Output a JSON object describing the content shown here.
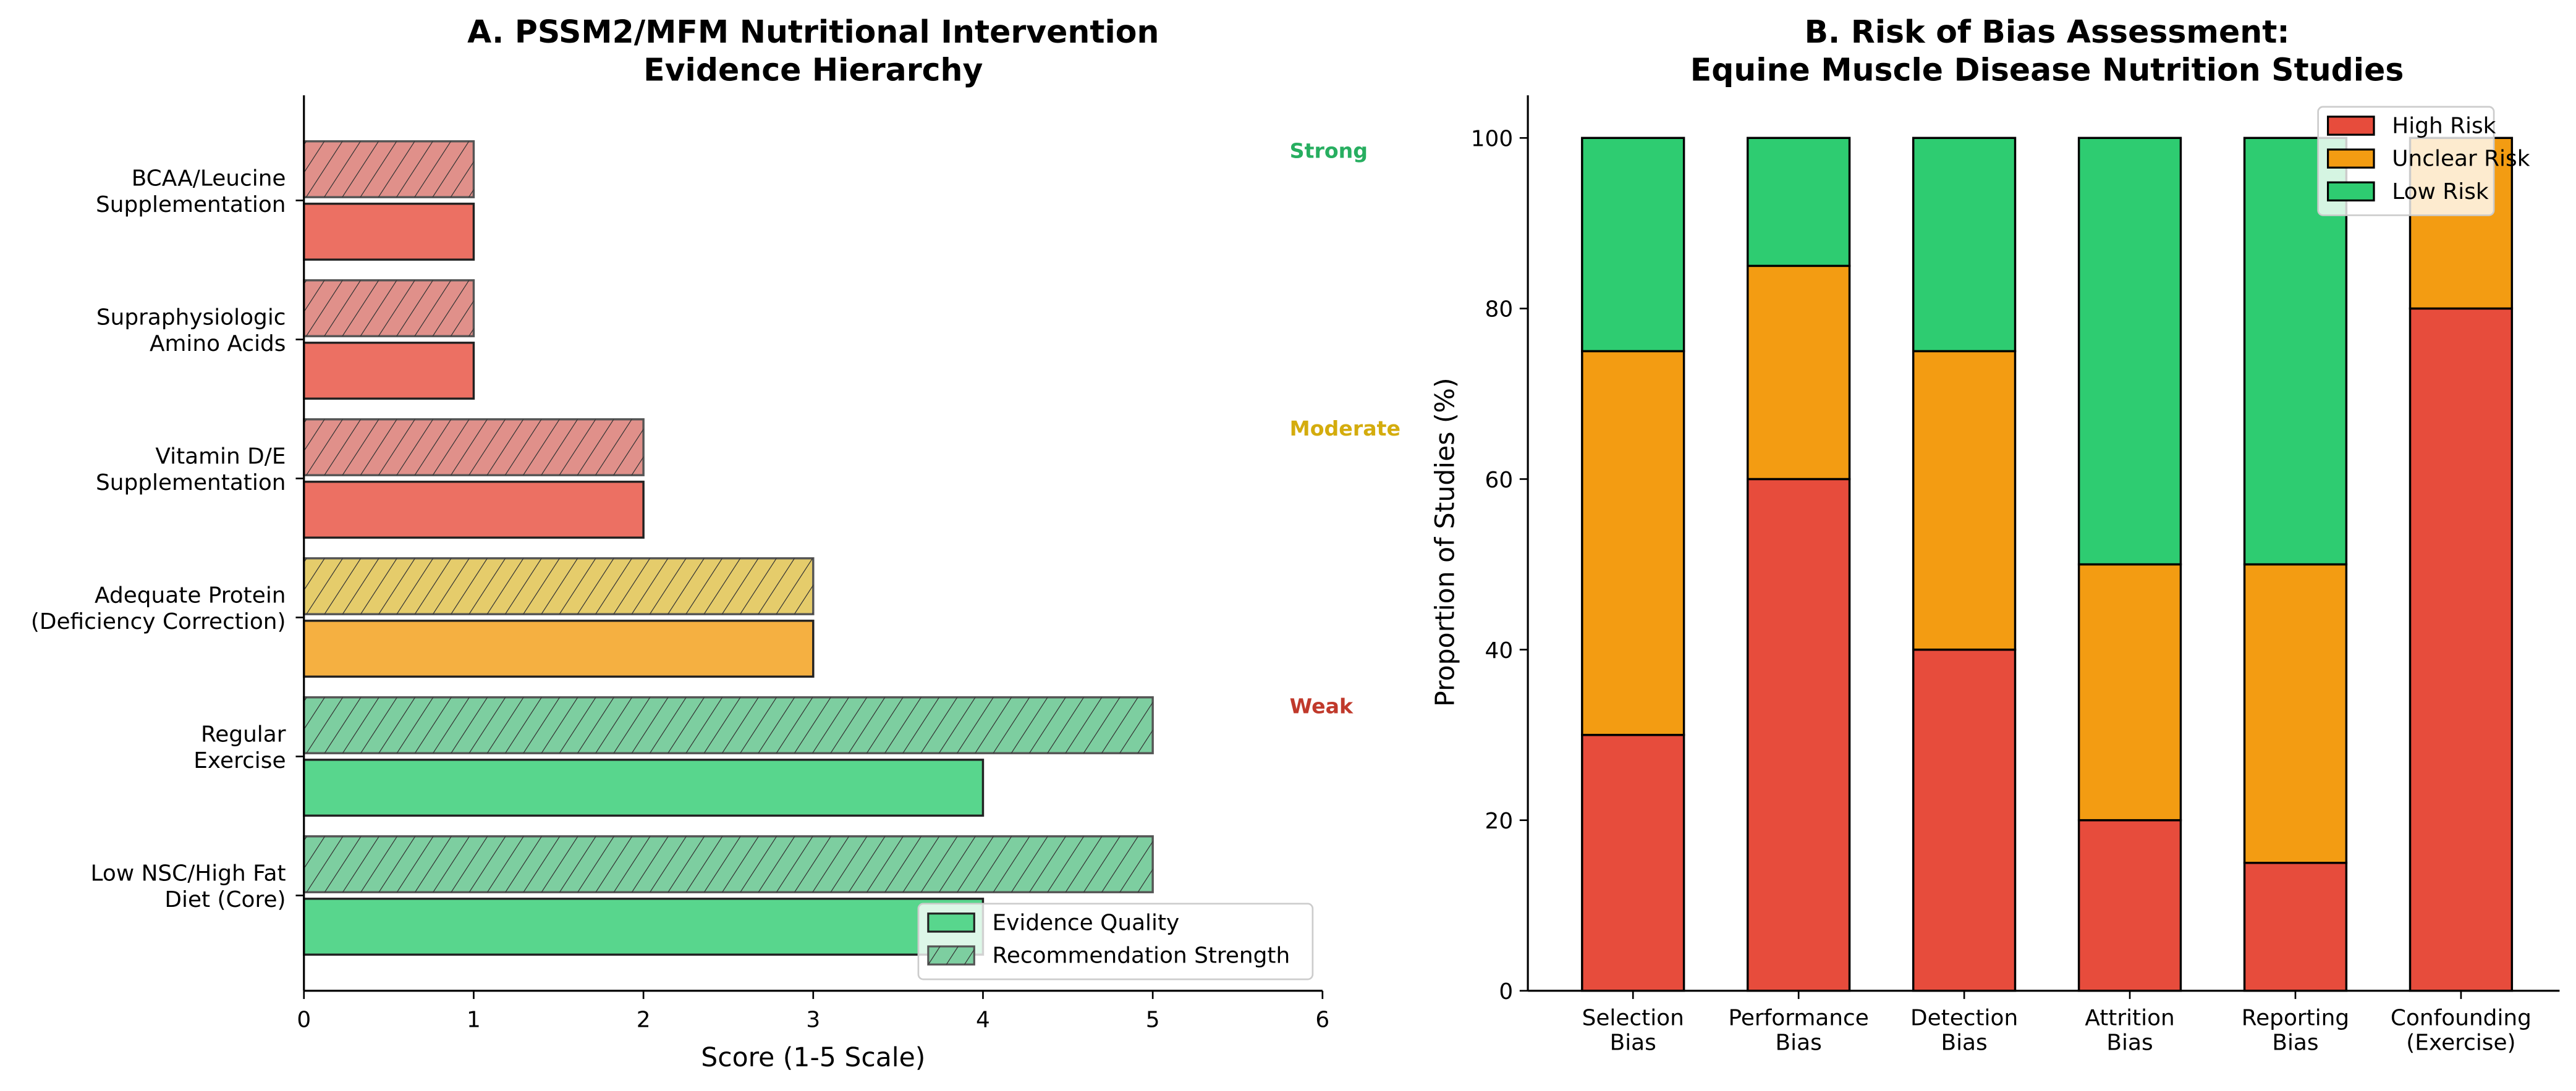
{
  "chart_data": [
    {
      "type": "bar",
      "orientation": "horizontal",
      "title": "A. PSSM2/MFM Nutritional Intervention\nEvidence Hierarchy",
      "xlabel": "Score (1-5 Scale)",
      "ylabel": "",
      "xlim": [
        0,
        6
      ],
      "xticks": [
        "0",
        "1",
        "2",
        "3",
        "4",
        "5",
        "6"
      ],
      "categories": [
        "Low NSC/High Fat\nDiet (Core)",
        "Regular\nExercise",
        "Adequate Protein\n(Deficiency Correction)",
        "Vitamin D/E\nSupplementation",
        "Supraphysiologic\nAmino Acids",
        "BCAA/Leucine\nSupplementation"
      ],
      "series": [
        {
          "name": "Evidence Quality",
          "values": [
            4,
            4,
            3,
            2,
            1,
            1
          ],
          "hatch": "none"
        },
        {
          "name": "Recommendation Strength",
          "values": [
            5,
            5,
            3,
            2,
            1,
            1
          ],
          "hatch": "diagonal"
        }
      ],
      "bar_colors": [
        "#58d68d",
        "#58d68d",
        "#f5b041",
        "#ec7063",
        "#ec7063",
        "#ec7063"
      ],
      "hatched_colors": [
        "#7dcea0",
        "#7dcea0",
        "#e5cc6b",
        "#e0908a",
        "#e0908a",
        "#e0908a"
      ],
      "legend": {
        "placement": "lower-right",
        "entries": [
          "Evidence Quality",
          "Recommendation Strength"
        ]
      },
      "annotations": [
        {
          "text": "Strong",
          "color": "#27ae60"
        },
        {
          "text": "Moderate",
          "color": "#d4ac0d"
        },
        {
          "text": "Weak",
          "color": "#c0392b"
        }
      ],
      "grid": false
    },
    {
      "type": "bar",
      "orientation": "vertical",
      "stacked": true,
      "title": "B. Risk of Bias Assessment:\nEquine Muscle Disease Nutrition Studies",
      "xlabel": "",
      "ylabel": "Proportion of Studies (%)",
      "ylim": [
        0,
        105
      ],
      "yticks": [
        "0",
        "20",
        "40",
        "60",
        "80",
        "100"
      ],
      "categories": [
        "Selection\nBias",
        "Performance\nBias",
        "Detection\nBias",
        "Attrition\nBias",
        "Reporting\nBias",
        "Confounding\n(Exercise)"
      ],
      "series": [
        {
          "name": "High Risk",
          "color": "#e74c3c",
          "values": [
            30,
            60,
            40,
            20,
            15,
            80
          ]
        },
        {
          "name": "Unclear Risk",
          "color": "#f39c12",
          "values": [
            45,
            25,
            35,
            30,
            35,
            20
          ]
        },
        {
          "name": "Low Risk",
          "color": "#2ecc71",
          "values": [
            25,
            15,
            25,
            50,
            50,
            0
          ]
        }
      ],
      "legend": {
        "placement": "top-right",
        "entries": [
          "High Risk",
          "Unclear Risk",
          "Low Risk"
        ]
      },
      "grid": false
    }
  ]
}
